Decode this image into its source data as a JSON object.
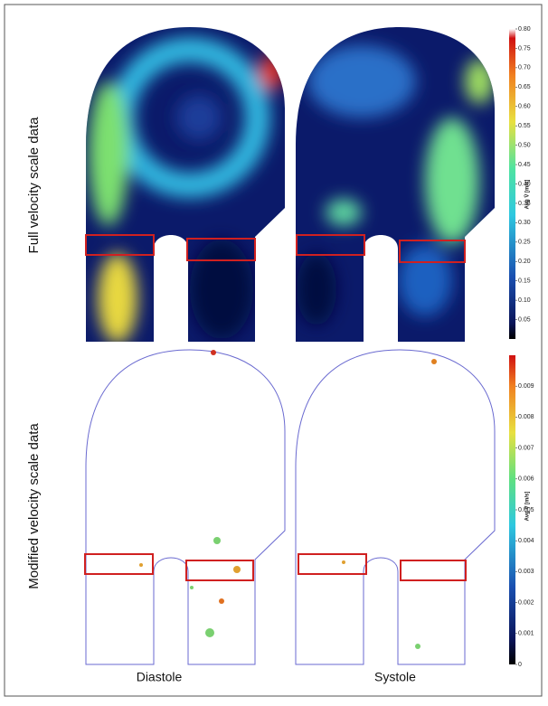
{
  "chart_data": [
    {
      "type": "heatmap",
      "ylabel": "Full velocity scale data",
      "colorbar": {
        "label": "Avg V̄ [m/s]",
        "lim": [
          0,
          0.8
        ],
        "ticks": [
          0.05,
          {
            "value": 0.1,
            "label": "0.10"
          },
          0.15,
          {
            "value": 0.2,
            "label": "0.20"
          },
          0.25,
          {
            "value": 0.3,
            "label": "0.30"
          },
          0.35,
          {
            "value": 0.4,
            "label": "0.40"
          },
          0.45,
          {
            "value": 0.5,
            "label": "0.50"
          },
          0.55,
          {
            "value": 0.6,
            "label": "0.60"
          },
          0.65,
          {
            "value": 0.7,
            "label": "0.70"
          },
          0.75,
          {
            "value": 0.8,
            "label": "0.80"
          }
        ]
      }
    },
    {
      "type": "heatmap",
      "ylabel": "Modified velocity scale data",
      "x_labels": [
        "Diastole",
        "Systole"
      ],
      "colorbar": {
        "label": "Avg V̄ [m/s]",
        "lim": [
          0,
          0.01
        ],
        "ticks": [
          0,
          0.001,
          0.002,
          0.003,
          0.004,
          0.005,
          0.006,
          0.007,
          0.008,
          0.009
        ]
      }
    }
  ]
}
